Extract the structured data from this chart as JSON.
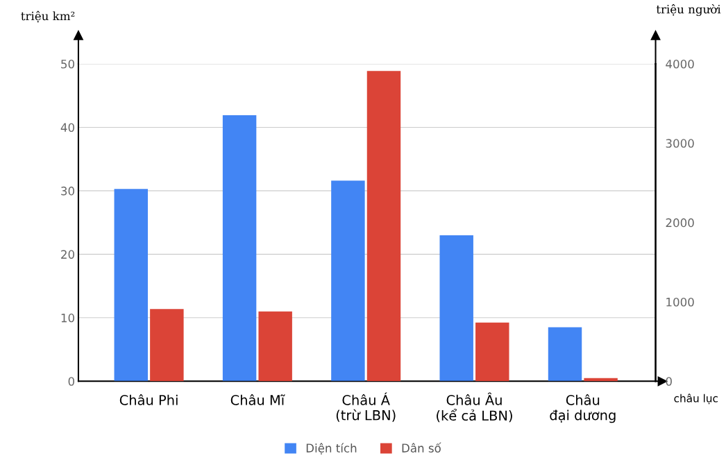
{
  "chart_data": {
    "type": "bar",
    "categories": [
      "Châu Phi",
      "Châu Mĩ",
      "Châu Á\n(trừ LBN)",
      "Châu Âu\n(kể cả LBN)",
      "Châu\nđại dương"
    ],
    "series": [
      {
        "name": "Diện tích",
        "color": "#4285f4",
        "values": [
          30.3,
          41.9,
          31.6,
          23.0,
          8.5
        ]
      },
      {
        "name": "Dân số",
        "color": "#db4437",
        "axis": "y2",
        "values": [
          910,
          880,
          3910,
          740,
          40
        ]
      }
    ],
    "ylabel": "triệu km²",
    "y2label": "triệu người",
    "xlabel": "châu lục",
    "ylim": [
      0,
      50
    ],
    "yticks": [
      0,
      10,
      20,
      30,
      40,
      50
    ],
    "y2lim": [
      0,
      4000
    ],
    "y2ticks": [
      0,
      1000,
      2000,
      3000,
      4000
    ],
    "grid": "y",
    "legend": "bottom"
  }
}
